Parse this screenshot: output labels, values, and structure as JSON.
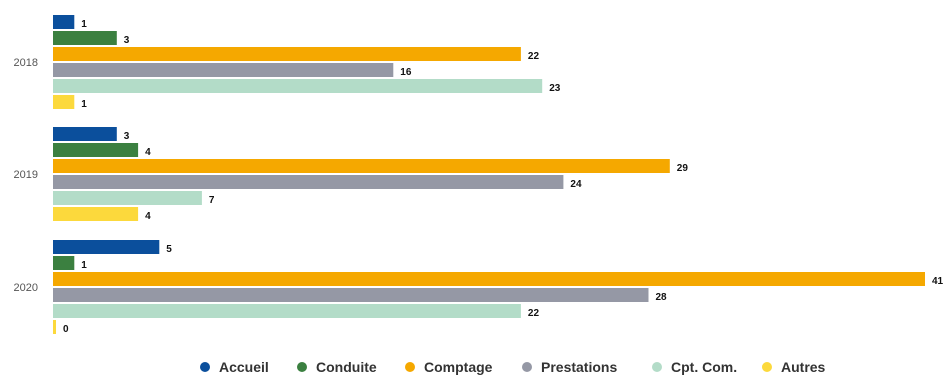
{
  "chart_data": {
    "type": "bar",
    "orientation": "horizontal",
    "categories": [
      "2018",
      "2019",
      "2020"
    ],
    "series": [
      {
        "name": "Accueil",
        "color": "#0b4f9c",
        "values": [
          1,
          3,
          5
        ]
      },
      {
        "name": "Conduite",
        "color": "#3b8040",
        "values": [
          3,
          4,
          1
        ]
      },
      {
        "name": "Comptage",
        "color": "#f5a800",
        "values": [
          22,
          29,
          41
        ]
      },
      {
        "name": "Prestations",
        "color": "#9598a5",
        "values": [
          16,
          24,
          28
        ]
      },
      {
        "name": "Cpt. Com.",
        "color": "#b3dcc8",
        "values": [
          23,
          7,
          22
        ]
      },
      {
        "name": "Autres",
        "color": "#fcd93c",
        "values": [
          1,
          4,
          0
        ]
      }
    ],
    "xlim": [
      0,
      41
    ],
    "grid": false,
    "data_labels": true,
    "legend_position": "bottom"
  }
}
